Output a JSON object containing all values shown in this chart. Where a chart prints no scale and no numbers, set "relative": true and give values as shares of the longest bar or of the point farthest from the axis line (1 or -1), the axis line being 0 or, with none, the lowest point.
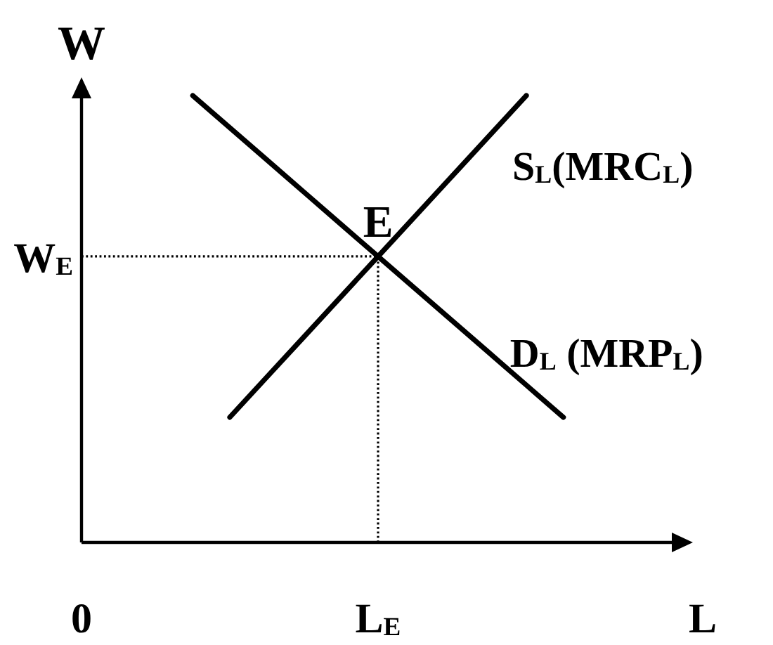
{
  "chart_data": {
    "type": "line",
    "relative": true,
    "xlabel": "L",
    "ylabel": "W",
    "categories": [
      "0",
      null,
      null,
      null,
      null,
      null,
      null,
      null,
      "L$_{E}$",
      null,
      null,
      null,
      null,
      null,
      null,
      null,
      null
    ],
    "series": [
      {
        "name": "S$_{L}$(MRC$_{L}$)",
        "color": "#000000",
        "values": [
          null,
          null,
          null,
          null,
          0.28,
          0.37,
          0.46,
          0.55,
          0.64,
          0.73,
          0.82,
          0.91,
          1,
          null,
          null,
          null,
          null
        ]
      },
      {
        "name": "D$_{L}$ (MRP$_{L}$)",
        "color": "#000000",
        "values": [
          null,
          null,
          null,
          1,
          0.928,
          0.856,
          0.784,
          0.712,
          0.64,
          0.568,
          0.496,
          0.424,
          0.352,
          0.28,
          null,
          null,
          null
        ]
      }
    ],
    "ref_lines": [
      {
        "axis": "y",
        "value": 0.64,
        "label": "W$_{E}$",
        "color": "#000000",
        "line_style": "dotted"
      },
      {
        "axis": "x",
        "value": "L$_{E}$",
        "color": "#000000",
        "line_style": "dotted"
      }
    ],
    "annotations": [
      {
        "text": "E",
        "x": "L$_{E}$",
        "y": 0.64
      }
    ]
  }
}
